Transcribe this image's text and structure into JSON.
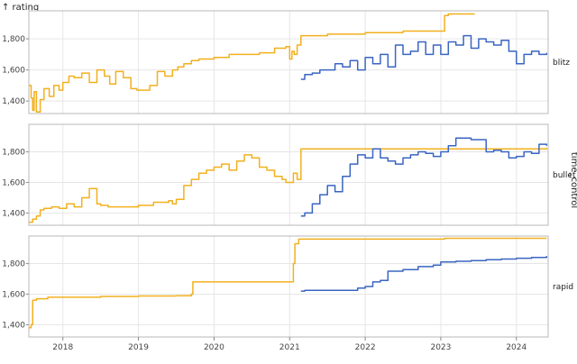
{
  "chart_data": {
    "type": "line",
    "y_axis_title": "↑ rating",
    "facet_title": "time_control",
    "x_tick_labels": [
      "2018",
      "2019",
      "2020",
      "2021",
      "2022",
      "2023",
      "2024"
    ],
    "x_ticks": [
      2018,
      2019,
      2020,
      2021,
      2022,
      2023,
      2024
    ],
    "x_range": [
      2017.55,
      2024.42
    ],
    "y_ticks": [
      1400,
      1600,
      1800
    ],
    "y_tick_labels": [
      "1,400",
      "1,600",
      "1,800"
    ],
    "grid": true,
    "colors": {
      "orange": "#f2b01e",
      "blue": "#3a65c2"
    },
    "facets": [
      {
        "name": "blitz",
        "ylim": [
          1320,
          1980
        ],
        "series": [
          {
            "color": "#f2b01e",
            "x": [
              2017.55,
              2017.58,
              2017.6,
              2017.62,
              2017.65,
              2017.7,
              2017.75,
              2017.82,
              2017.88,
              2017.95,
              2018.0,
              2018.08,
              2018.15,
              2018.25,
              2018.35,
              2018.45,
              2018.55,
              2018.62,
              2018.7,
              2018.8,
              2018.9,
              2018.98,
              2019.05,
              2019.15,
              2019.25,
              2019.35,
              2019.45,
              2019.52,
              2019.6,
              2019.7,
              2019.8,
              2019.9,
              2020.0,
              2020.2,
              2020.4,
              2020.6,
              2020.8,
              2020.95,
              2021.0,
              2021.03,
              2021.06,
              2021.1,
              2021.15,
              2021.5,
              2022.0,
              2022.5,
              2023.0,
              2023.05,
              2023.1,
              2023.3,
              2023.45
            ],
            "y": [
              1500,
              1420,
              1340,
              1460,
              1330,
              1410,
              1480,
              1430,
              1500,
              1470,
              1520,
              1560,
              1550,
              1580,
              1520,
              1600,
              1560,
              1510,
              1590,
              1550,
              1480,
              1470,
              1470,
              1500,
              1590,
              1560,
              1600,
              1620,
              1640,
              1660,
              1670,
              1670,
              1680,
              1700,
              1700,
              1710,
              1740,
              1750,
              1670,
              1720,
              1700,
              1760,
              1820,
              1830,
              1840,
              1850,
              1850,
              1950,
              1960,
              1960,
              1960
            ]
          },
          {
            "color": "#3a65c2",
            "x": [
              2021.15,
              2021.2,
              2021.3,
              2021.4,
              2021.5,
              2021.6,
              2021.7,
              2021.8,
              2021.9,
              2022.0,
              2022.1,
              2022.2,
              2022.3,
              2022.4,
              2022.5,
              2022.6,
              2022.7,
              2022.8,
              2022.9,
              2023.0,
              2023.1,
              2023.2,
              2023.3,
              2023.4,
              2023.5,
              2023.6,
              2023.7,
              2023.8,
              2023.9,
              2024.0,
              2024.1,
              2024.2,
              2024.3,
              2024.4
            ],
            "y": [
              1540,
              1570,
              1580,
              1600,
              1600,
              1640,
              1620,
              1660,
              1600,
              1680,
              1640,
              1700,
              1620,
              1760,
              1700,
              1720,
              1780,
              1700,
              1760,
              1700,
              1780,
              1760,
              1820,
              1740,
              1800,
              1780,
              1760,
              1790,
              1720,
              1640,
              1700,
              1720,
              1700,
              1710
            ]
          }
        ]
      },
      {
        "name": "bullet",
        "ylim": [
          1320,
          1980
        ],
        "series": [
          {
            "color": "#f2b01e",
            "x": [
              2017.55,
              2017.6,
              2017.65,
              2017.7,
              2017.75,
              2017.85,
              2017.95,
              2018.05,
              2018.15,
              2018.25,
              2018.35,
              2018.45,
              2018.5,
              2018.6,
              2018.8,
              2019.0,
              2019.2,
              2019.3,
              2019.4,
              2019.45,
              2019.5,
              2019.6,
              2019.7,
              2019.8,
              2019.9,
              2020.0,
              2020.1,
              2020.2,
              2020.3,
              2020.4,
              2020.5,
              2020.6,
              2020.7,
              2020.8,
              2020.9,
              2020.95,
              2021.0,
              2021.05,
              2021.1,
              2021.15,
              2021.5,
              2022.0,
              2022.5,
              2023.0,
              2023.5,
              2024.0,
              2024.4
            ],
            "y": [
              1340,
              1360,
              1380,
              1420,
              1430,
              1440,
              1430,
              1460,
              1440,
              1500,
              1560,
              1460,
              1450,
              1440,
              1440,
              1450,
              1470,
              1470,
              1480,
              1460,
              1490,
              1580,
              1620,
              1660,
              1680,
              1700,
              1720,
              1680,
              1740,
              1780,
              1760,
              1700,
              1680,
              1640,
              1620,
              1600,
              1600,
              1660,
              1620,
              1820,
              1820,
              1820,
              1820,
              1820,
              1820,
              1820,
              1825
            ]
          },
          {
            "color": "#3a65c2",
            "x": [
              2021.15,
              2021.2,
              2021.3,
              2021.4,
              2021.5,
              2021.6,
              2021.7,
              2021.8,
              2021.9,
              2022.0,
              2022.1,
              2022.2,
              2022.3,
              2022.4,
              2022.5,
              2022.6,
              2022.7,
              2022.8,
              2022.9,
              2023.0,
              2023.1,
              2023.2,
              2023.3,
              2023.4,
              2023.5,
              2023.6,
              2023.7,
              2023.8,
              2023.9,
              2024.0,
              2024.1,
              2024.2,
              2024.3,
              2024.4
            ],
            "y": [
              1380,
              1400,
              1460,
              1520,
              1580,
              1540,
              1640,
              1720,
              1780,
              1760,
              1820,
              1760,
              1740,
              1720,
              1760,
              1780,
              1800,
              1790,
              1770,
              1800,
              1840,
              1890,
              1890,
              1880,
              1880,
              1800,
              1810,
              1800,
              1760,
              1770,
              1800,
              1790,
              1850,
              1840
            ]
          }
        ]
      },
      {
        "name": "rapid",
        "ylim": [
          1320,
          1980
        ],
        "series": [
          {
            "color": "#f2b01e",
            "x": [
              2017.55,
              2017.58,
              2017.6,
              2017.65,
              2017.8,
              2018.0,
              2018.5,
              2019.0,
              2019.5,
              2019.7,
              2019.72,
              2019.8,
              2020.0,
              2020.5,
              2021.0,
              2021.05,
              2021.07,
              2021.12,
              2021.5,
              2022.0,
              2022.5,
              2023.0,
              2023.05,
              2023.5,
              2024.0,
              2024.4
            ],
            "y": [
              1380,
              1400,
              1560,
              1570,
              1580,
              1580,
              1585,
              1588,
              1590,
              1600,
              1680,
              1680,
              1680,
              1680,
              1680,
              1800,
              1930,
              1960,
              1960,
              1960,
              1960,
              1960,
              1965,
              1965,
              1965,
              1965
            ]
          },
          {
            "color": "#3a65c2",
            "x": [
              2021.15,
              2021.2,
              2021.4,
              2021.6,
              2021.8,
              2021.9,
              2022.0,
              2022.1,
              2022.2,
              2022.3,
              2022.5,
              2022.7,
              2022.9,
              2023.0,
              2023.2,
              2023.4,
              2023.6,
              2023.8,
              2024.0,
              2024.2,
              2024.4
            ],
            "y": [
              1620,
              1625,
              1625,
              1625,
              1625,
              1640,
              1650,
              1680,
              1690,
              1750,
              1760,
              1780,
              1790,
              1810,
              1815,
              1820,
              1825,
              1830,
              1835,
              1840,
              1850
            ]
          }
        ]
      }
    ]
  }
}
